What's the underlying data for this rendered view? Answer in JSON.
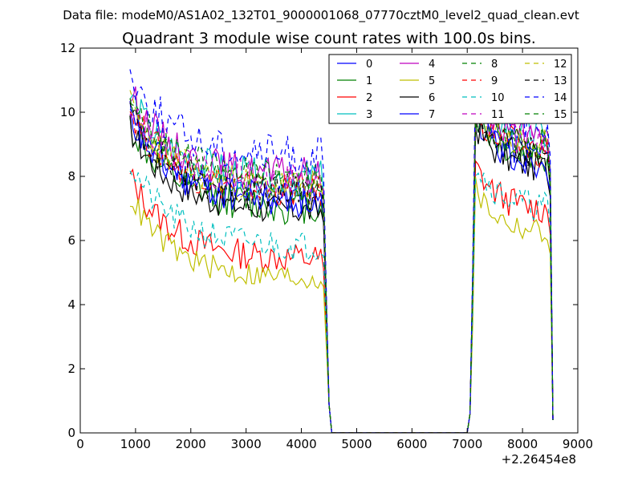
{
  "chart_data": {
    "type": "line",
    "suptitle": "Data file: modeM0/AS1A02_132T01_9000001068_07770cztM0_level2_quad_clean.evt",
    "title": "Quadrant 3 module wise count rates with 100.0s bins.",
    "xlabel": "",
    "ylabel": "",
    "x_offset_label": "+2.26454e8",
    "xlim": [
      0,
      9000
    ],
    "ylim": [
      0,
      12
    ],
    "x_ticks": [
      0,
      1000,
      2000,
      3000,
      4000,
      5000,
      6000,
      7000,
      8000,
      9000
    ],
    "y_ticks": [
      0,
      2,
      4,
      6,
      8,
      10,
      12
    ],
    "grid": false,
    "legend_position": "top-right",
    "legend_columns": 4,
    "series": [
      {
        "name": "0",
        "color": "#0000ff",
        "dash": "solid",
        "level1": 7.3,
        "level2": 8.6,
        "amp": 0.35,
        "seed": 11
      },
      {
        "name": "1",
        "color": "#008000",
        "dash": "solid",
        "level1": 7.0,
        "level2": 8.5,
        "amp": 0.35,
        "seed": 12
      },
      {
        "name": "2",
        "color": "#ff0000",
        "dash": "solid",
        "level1": 5.4,
        "level2": 6.9,
        "amp": 0.3,
        "seed": 13
      },
      {
        "name": "3",
        "color": "#00bfbf",
        "dash": "solid",
        "level1": 7.9,
        "level2": 9.2,
        "amp": 0.35,
        "seed": 14
      },
      {
        "name": "4",
        "color": "#bf00bf",
        "dash": "solid",
        "level1": 8.0,
        "level2": 9.0,
        "amp": 0.35,
        "seed": 15
      },
      {
        "name": "5",
        "color": "#bfbf00",
        "dash": "solid",
        "level1": 4.8,
        "level2": 6.2,
        "amp": 0.25,
        "seed": 16
      },
      {
        "name": "6",
        "color": "#000000",
        "dash": "solid",
        "level1": 6.9,
        "level2": 8.2,
        "amp": 0.3,
        "seed": 17
      },
      {
        "name": "7",
        "color": "#0000ff",
        "dash": "solid",
        "level1": 7.2,
        "level2": 8.4,
        "amp": 0.35,
        "seed": 18
      },
      {
        "name": "8",
        "color": "#008000",
        "dash": "dashed",
        "level1": 7.6,
        "level2": 8.9,
        "amp": 0.35,
        "seed": 19
      },
      {
        "name": "9",
        "color": "#ff0000",
        "dash": "dashed",
        "level1": 7.5,
        "level2": 8.7,
        "amp": 0.35,
        "seed": 20
      },
      {
        "name": "10",
        "color": "#00bfbf",
        "dash": "dashed",
        "level1": 5.8,
        "level2": 7.0,
        "amp": 0.3,
        "seed": 21
      },
      {
        "name": "11",
        "color": "#bf00bf",
        "dash": "dashed",
        "level1": 7.8,
        "level2": 9.1,
        "amp": 0.35,
        "seed": 22
      },
      {
        "name": "12",
        "color": "#bfbf00",
        "dash": "dashed",
        "level1": 7.6,
        "level2": 8.8,
        "amp": 0.35,
        "seed": 23
      },
      {
        "name": "13",
        "color": "#000000",
        "dash": "dashed",
        "level1": 7.4,
        "level2": 8.6,
        "amp": 0.35,
        "seed": 24
      },
      {
        "name": "14",
        "color": "#0000ff",
        "dash": "dashed",
        "level1": 8.6,
        "level2": 9.6,
        "amp": 0.4,
        "seed": 25
      },
      {
        "name": "15",
        "color": "#008000",
        "dash": "dashed",
        "level1": 7.9,
        "level2": 9.0,
        "amp": 0.35,
        "seed": 26
      }
    ],
    "segments": [
      {
        "start": 900,
        "end": 4350,
        "step": 50
      },
      {
        "start": 7000,
        "end": 8550,
        "step": 50
      }
    ]
  }
}
